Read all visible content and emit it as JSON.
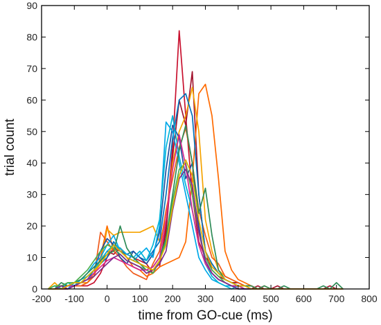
{
  "chart_data": {
    "type": "line",
    "title": "",
    "xlabel": "time from GO-cue (ms)",
    "ylabel": "trial count",
    "xlim": [
      -200,
      800
    ],
    "ylim": [
      0,
      90
    ],
    "xticks": [
      -200,
      -100,
      0,
      100,
      200,
      300,
      400,
      500,
      600,
      700,
      800
    ],
    "yticks": [
      0,
      10,
      20,
      30,
      40,
      50,
      60,
      70,
      80,
      90
    ],
    "xtick_labels": [
      "-200",
      "-100",
      "0",
      "100",
      "200",
      "300",
      "400",
      "500",
      "600",
      "700",
      "800"
    ],
    "ytick_labels": [
      "0",
      "10",
      "20",
      "30",
      "40",
      "50",
      "60",
      "70",
      "80",
      "90"
    ],
    "grid": false,
    "legend": false,
    "bin_width_ms": 20,
    "x": [
      -180,
      -160,
      -140,
      -120,
      -100,
      -80,
      -60,
      -40,
      -20,
      0,
      20,
      40,
      60,
      80,
      100,
      120,
      140,
      160,
      180,
      200,
      220,
      240,
      260,
      280,
      300,
      320,
      340,
      360,
      380,
      400,
      420,
      440,
      460,
      480,
      500,
      520,
      540,
      560,
      580,
      600,
      620,
      640,
      660,
      680,
      700,
      720
    ],
    "series": [
      {
        "color": "#c8102e",
        "values": [
          0,
          0,
          0,
          0,
          1,
          1,
          1,
          2,
          5,
          10,
          13,
          12,
          11,
          10,
          9,
          8,
          5,
          7,
          20,
          45,
          82,
          55,
          30,
          15,
          10,
          8,
          5,
          3,
          2,
          2,
          1,
          1,
          0,
          0,
          0,
          0,
          0,
          0,
          0,
          0,
          0,
          0,
          0,
          0,
          0,
          0
        ]
      },
      {
        "color": "#a2142f",
        "values": [
          0,
          0,
          1,
          1,
          1,
          2,
          3,
          6,
          9,
          12,
          11,
          13,
          10,
          9,
          8,
          7,
          6,
          8,
          18,
          42,
          60,
          52,
          69,
          30,
          12,
          6,
          4,
          3,
          2,
          2,
          1,
          0,
          1,
          0,
          0,
          1,
          0,
          0,
          0,
          0,
          0,
          0,
          0,
          1,
          0,
          0
        ]
      },
      {
        "color": "#ff6a00",
        "values": [
          0,
          0,
          0,
          1,
          1,
          1,
          2,
          4,
          10,
          20,
          12,
          13,
          10,
          7,
          6,
          4,
          5,
          7,
          8,
          9,
          10,
          15,
          35,
          62,
          65,
          55,
          35,
          12,
          6,
          3,
          2,
          1,
          0,
          1,
          0,
          0,
          0,
          0,
          0,
          0,
          0,
          0,
          0,
          0,
          0,
          0
        ]
      },
      {
        "color": "#f5a300",
        "values": [
          0,
          2,
          0,
          1,
          1,
          2,
          2,
          5,
          8,
          19,
          17,
          18,
          18,
          18,
          18,
          19,
          20,
          15,
          22,
          40,
          50,
          55,
          64,
          50,
          22,
          12,
          6,
          4,
          3,
          2,
          1,
          1,
          0,
          0,
          0,
          0,
          0,
          0,
          0,
          0,
          0,
          0,
          0,
          0,
          0,
          0
        ]
      },
      {
        "color": "#f05a1a",
        "values": [
          0,
          0,
          1,
          0,
          1,
          1,
          2,
          4,
          18,
          15,
          12,
          10,
          7,
          5,
          4,
          3,
          8,
          12,
          25,
          35,
          45,
          51,
          40,
          25,
          17,
          10,
          8,
          4,
          3,
          2,
          1,
          1,
          0,
          0,
          0,
          0,
          0,
          0,
          0,
          0,
          0,
          0,
          0,
          0,
          0,
          0
        ]
      },
      {
        "color": "#0072bd",
        "values": [
          0,
          1,
          0,
          1,
          2,
          2,
          3,
          6,
          8,
          10,
          15,
          12,
          11,
          12,
          10,
          9,
          12,
          15,
          30,
          48,
          60,
          62,
          55,
          30,
          12,
          8,
          5,
          3,
          2,
          1,
          1,
          0,
          0,
          0,
          0,
          0,
          0,
          0,
          0,
          0,
          0,
          0,
          0,
          0,
          0,
          0
        ]
      },
      {
        "color": "#1f4e9e",
        "values": [
          0,
          0,
          0,
          1,
          1,
          2,
          4,
          6,
          12,
          16,
          14,
          10,
          8,
          12,
          10,
          8,
          11,
          18,
          38,
          52,
          48,
          35,
          40,
          20,
          8,
          5,
          3,
          2,
          1,
          1,
          0,
          0,
          0,
          0,
          0,
          0,
          0,
          0,
          0,
          0,
          0,
          0,
          0,
          0,
          0,
          0
        ]
      },
      {
        "color": "#00a8e8",
        "values": [
          0,
          0,
          1,
          0,
          2,
          3,
          5,
          8,
          10,
          14,
          17,
          12,
          10,
          9,
          11,
          13,
          10,
          20,
          53,
          50,
          40,
          30,
          20,
          10,
          6,
          3,
          2,
          1,
          1,
          0,
          0,
          0,
          0,
          0,
          0,
          0,
          0,
          0,
          0,
          0,
          0,
          0,
          0,
          0,
          0,
          0
        ]
      },
      {
        "color": "#00b4d8",
        "values": [
          0,
          1,
          0,
          2,
          1,
          3,
          4,
          6,
          9,
          12,
          14,
          13,
          11,
          10,
          12,
          9,
          14,
          22,
          45,
          55,
          42,
          33,
          25,
          14,
          8,
          4,
          2,
          1,
          0,
          1,
          0,
          0,
          0,
          0,
          0,
          0,
          0,
          0,
          0,
          0,
          0,
          0,
          0,
          0,
          0,
          0
        ]
      },
      {
        "color": "#2e8b57",
        "values": [
          0,
          0,
          2,
          1,
          2,
          3,
          5,
          7,
          9,
          11,
          12,
          20,
          13,
          10,
          8,
          6,
          7,
          10,
          16,
          30,
          44,
          52,
          40,
          24,
          32,
          17,
          6,
          3,
          2,
          1,
          1,
          1,
          0,
          1,
          0,
          0,
          1,
          0,
          0,
          0,
          0,
          0,
          1,
          0,
          2,
          0
        ]
      },
      {
        "color": "#4caf50",
        "values": [
          0,
          1,
          1,
          2,
          2,
          4,
          6,
          9,
          12,
          14,
          13,
          11,
          9,
          8,
          7,
          6,
          5,
          9,
          15,
          28,
          38,
          40,
          30,
          18,
          10,
          6,
          4,
          2,
          1,
          1,
          0,
          0,
          0,
          0,
          0,
          0,
          0,
          0,
          0,
          0,
          0,
          0,
          0,
          0,
          0,
          0
        ]
      },
      {
        "color": "#d62790",
        "values": [
          0,
          0,
          0,
          1,
          1,
          2,
          3,
          5,
          7,
          9,
          10,
          9,
          8,
          7,
          6,
          6,
          7,
          10,
          22,
          38,
          49,
          39,
          25,
          14,
          8,
          5,
          3,
          2,
          1,
          1,
          0,
          0,
          0,
          0,
          0,
          0,
          0,
          0,
          0,
          0,
          0,
          0,
          0,
          0,
          0,
          0
        ]
      },
      {
        "color": "#7b2d8e",
        "values": [
          0,
          0,
          1,
          0,
          1,
          2,
          3,
          4,
          6,
          8,
          10,
          11,
          9,
          8,
          7,
          5,
          6,
          8,
          12,
          25,
          35,
          38,
          33,
          18,
          9,
          5,
          3,
          2,
          1,
          0,
          0,
          0,
          0,
          0,
          0,
          0,
          0,
          0,
          0,
          0,
          0,
          0,
          0,
          0,
          0,
          0
        ]
      },
      {
        "color": "#e0b000",
        "values": [
          0,
          0,
          0,
          1,
          2,
          2,
          4,
          6,
          8,
          11,
          14,
          12,
          10,
          9,
          8,
          7,
          6,
          9,
          14,
          26,
          36,
          41,
          36,
          22,
          12,
          7,
          5,
          3,
          2,
          1,
          1,
          0,
          0,
          0,
          0,
          0,
          0,
          0,
          0,
          0,
          0,
          0,
          0,
          0,
          0,
          0
        ]
      }
    ]
  }
}
